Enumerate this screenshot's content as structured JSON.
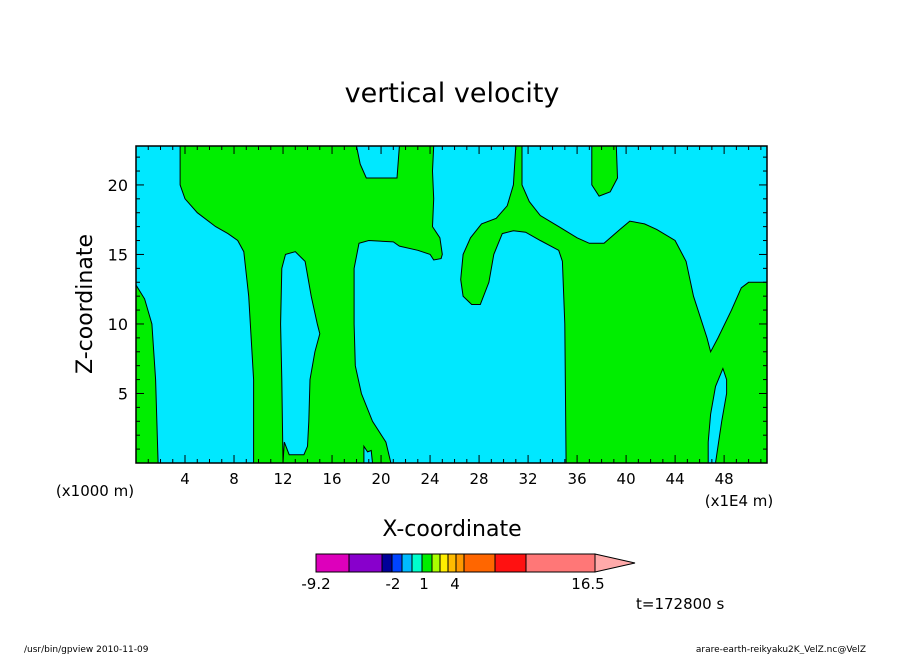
{
  "chart_data": {
    "type": "heatmap",
    "title": "vertical velocity",
    "xlabel": "X-coordinate",
    "ylabel": "Z-coordinate",
    "x_unit_left": "(x1000 m)",
    "x_unit_right": "(x1E4 m)",
    "xlim": [
      0,
      51.5
    ],
    "ylim": [
      0,
      22.8
    ],
    "x_ticks": [
      4,
      8,
      12,
      16,
      20,
      24,
      28,
      32,
      36,
      40,
      44,
      48
    ],
    "y_ticks": [
      5,
      10,
      15,
      20
    ],
    "fill_colors": {
      "background": "#00e8ff",
      "positive": "#00ee00"
    },
    "regions": [
      {
        "name": "positive-region",
        "color": "#00ee00",
        "points": [
          [
            0,
            12.8
          ],
          [
            0.7,
            11.8
          ],
          [
            1.3,
            10
          ],
          [
            1.6,
            6
          ],
          [
            1.8,
            0
          ],
          [
            0,
            0
          ]
        ]
      },
      {
        "name": "positive-region",
        "color": "#00ee00",
        "points": [
          [
            3.6,
            22.8
          ],
          [
            3.6,
            20
          ],
          [
            4,
            19
          ],
          [
            5,
            18
          ],
          [
            6.5,
            17
          ],
          [
            7.5,
            16.5
          ],
          [
            8.3,
            16
          ],
          [
            8.8,
            15.2
          ],
          [
            9.2,
            12
          ],
          [
            9.6,
            6
          ],
          [
            9.6,
            0
          ],
          [
            12,
            0
          ],
          [
            11.9,
            6
          ],
          [
            11.8,
            10
          ],
          [
            11.9,
            14
          ],
          [
            12.2,
            15
          ],
          [
            13,
            15.2
          ],
          [
            13.8,
            14.5
          ],
          [
            14.3,
            12
          ],
          [
            14.8,
            10
          ],
          [
            15,
            9.3
          ],
          [
            14.6,
            8
          ],
          [
            14.2,
            6
          ],
          [
            14.1,
            3
          ],
          [
            14,
            1.2
          ],
          [
            13.7,
            0.6
          ],
          [
            12.5,
            0.6
          ],
          [
            12.1,
            1.5
          ],
          [
            12,
            0
          ],
          [
            18.6,
            0
          ],
          [
            18.6,
            1.2
          ],
          [
            18.9,
            0.8
          ],
          [
            19.2,
            0.9
          ],
          [
            19.3,
            0
          ],
          [
            20.8,
            0
          ],
          [
            20.4,
            1.5
          ],
          [
            19.3,
            3
          ],
          [
            18.4,
            5
          ],
          [
            17.9,
            7
          ],
          [
            17.8,
            10
          ],
          [
            17.8,
            14
          ],
          [
            18.2,
            15.8
          ],
          [
            19,
            16
          ],
          [
            21,
            15.9
          ],
          [
            21.5,
            15.6
          ],
          [
            23,
            15.3
          ],
          [
            24,
            15
          ],
          [
            24.3,
            14.6
          ],
          [
            24.9,
            14.7
          ],
          [
            25,
            15
          ],
          [
            24.8,
            16.2
          ],
          [
            24.2,
            17
          ],
          [
            24.3,
            19
          ],
          [
            24.2,
            21
          ],
          [
            24.3,
            22.8
          ],
          [
            21.5,
            22.8
          ],
          [
            21.3,
            20.5
          ],
          [
            20.5,
            20.5
          ],
          [
            18.8,
            20.5
          ],
          [
            18.3,
            21.5
          ],
          [
            18,
            22.8
          ]
        ]
      },
      {
        "name": "positive-region",
        "color": "#00ee00",
        "points": [
          [
            31.5,
            22.8
          ],
          [
            31.5,
            20
          ],
          [
            32.1,
            18.8
          ],
          [
            33,
            17.8
          ],
          [
            34.5,
            17
          ],
          [
            36,
            16.2
          ],
          [
            37,
            15.8
          ],
          [
            38.2,
            15.8
          ],
          [
            39.5,
            16.8
          ],
          [
            40.3,
            17.4
          ],
          [
            41.5,
            17.2
          ],
          [
            42.5,
            16.8
          ],
          [
            44,
            16
          ],
          [
            44.9,
            14.5
          ],
          [
            45.5,
            12
          ],
          [
            46.6,
            9
          ],
          [
            46.9,
            8
          ],
          [
            47.5,
            9
          ],
          [
            48.6,
            11
          ],
          [
            49.4,
            12.6
          ],
          [
            50,
            13
          ],
          [
            51.5,
            13
          ],
          [
            51.5,
            0
          ],
          [
            47.3,
            0
          ],
          [
            47.8,
            3
          ],
          [
            48.2,
            5
          ],
          [
            48.2,
            6
          ],
          [
            47.9,
            6.8
          ],
          [
            47.3,
            5.5
          ],
          [
            46.9,
            3.5
          ],
          [
            46.7,
            1.5
          ],
          [
            46.7,
            0
          ],
          [
            35.1,
            0
          ],
          [
            35,
            10
          ],
          [
            34.8,
            14.5
          ],
          [
            34.5,
            15.3
          ],
          [
            33,
            16
          ],
          [
            31.8,
            16.6
          ],
          [
            30.8,
            16.7
          ],
          [
            29.9,
            16.5
          ],
          [
            29.2,
            15
          ],
          [
            28.8,
            13
          ],
          [
            28.1,
            11.4
          ],
          [
            27.4,
            11.4
          ],
          [
            26.7,
            12
          ],
          [
            26.5,
            13.2
          ],
          [
            26.7,
            15
          ],
          [
            27.3,
            16.2
          ],
          [
            28.2,
            17.2
          ],
          [
            29.4,
            17.6
          ],
          [
            30.3,
            18.5
          ],
          [
            30.8,
            20
          ],
          [
            31,
            22.8
          ]
        ]
      },
      {
        "name": "positive-region",
        "color": "#00ee00",
        "points": [
          [
            37.2,
            22.8
          ],
          [
            37.2,
            20
          ],
          [
            37.8,
            19.2
          ],
          [
            38.7,
            19.5
          ],
          [
            39.3,
            20.5
          ],
          [
            39.2,
            22.8
          ]
        ]
      }
    ],
    "colorbar": {
      "labels": [
        "-9.2",
        "-2",
        "1",
        "4",
        "16.5"
      ],
      "colors": [
        "#dd00bb",
        "#8800cc",
        "#000099",
        "#0044ff",
        "#00bbff",
        "#00ffcc",
        "#00ee00",
        "#aaff00",
        "#ffee00",
        "#ffbb00",
        "#ff9900",
        "#ff6600",
        "#ff1111",
        "#ff7777",
        "#ffaaaa"
      ]
    }
  },
  "timestamp": "t=172800 s",
  "footer": {
    "left": "/usr/bin/gpview   2010-11-09",
    "right": "arare-earth-reikyaku2K_VelZ.nc@VelZ"
  }
}
